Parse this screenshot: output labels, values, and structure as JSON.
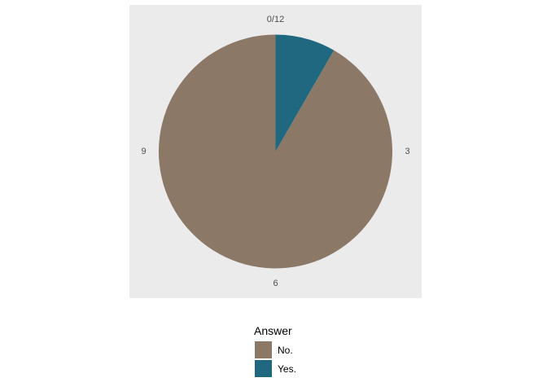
{
  "chart_data": {
    "type": "pie",
    "categories": [
      "No.",
      "Yes."
    ],
    "values": [
      11,
      1
    ],
    "colors": [
      "#8b7866",
      "#1f6880"
    ],
    "total": 12,
    "angular_ticks": [
      {
        "value": 0,
        "label": "0/12"
      },
      {
        "value": 3,
        "label": "3"
      },
      {
        "value": 6,
        "label": "6"
      },
      {
        "value": 9,
        "label": "9"
      }
    ],
    "legend": {
      "title": "Answer",
      "placement": "bottom",
      "entries": [
        {
          "label": "No.",
          "color": "#8b7866"
        },
        {
          "label": "Yes.",
          "color": "#1f6880"
        }
      ]
    },
    "panel_background": "#ebebeb",
    "start": "top",
    "direction": "clockwise"
  }
}
